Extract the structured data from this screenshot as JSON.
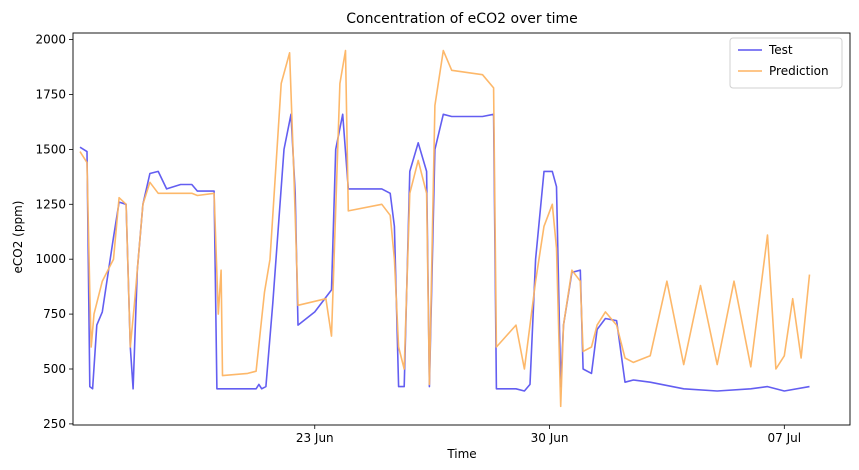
{
  "chart_data": {
    "type": "line",
    "title": "Concentration of eCO2 over time",
    "xlabel": "Time",
    "ylabel": "eCO2 (ppm)",
    "x_ticks": [
      {
        "label": "23 Jun",
        "date": "2024-06-23"
      },
      {
        "label": "30 Jun",
        "date": "2024-06-30"
      },
      {
        "label": "07 Jul",
        "date": "2024-07-07"
      }
    ],
    "y_ticks": [
      250,
      500,
      750,
      1000,
      1250,
      1500,
      1750,
      2000
    ],
    "xlim": [
      "2024-06-15T19:00",
      "2024-07-08T23:00"
    ],
    "ylim": [
      245,
      2030
    ],
    "grid": false,
    "legend": "top-right",
    "series": [
      {
        "name": "Test",
        "color": "#5b55f0",
        "points": [
          [
            "2024-06-16T00:00",
            1510
          ],
          [
            "2024-06-16T05:00",
            1490
          ],
          [
            "2024-06-16T07:00",
            420
          ],
          [
            "2024-06-16T09:00",
            410
          ],
          [
            "2024-06-16T12:00",
            700
          ],
          [
            "2024-06-16T16:00",
            760
          ],
          [
            "2024-06-17T00:00",
            1100
          ],
          [
            "2024-06-17T04:00",
            1260
          ],
          [
            "2024-06-17T09:00",
            1250
          ],
          [
            "2024-06-17T12:00",
            600
          ],
          [
            "2024-06-17T14:00",
            410
          ],
          [
            "2024-06-17T17:00",
            950
          ],
          [
            "2024-06-17T21:00",
            1250
          ],
          [
            "2024-06-18T02:00",
            1390
          ],
          [
            "2024-06-18T08:00",
            1400
          ],
          [
            "2024-06-18T14:00",
            1320
          ],
          [
            "2024-06-19T00:00",
            1340
          ],
          [
            "2024-06-19T08:00",
            1340
          ],
          [
            "2024-06-19T12:00",
            1310
          ],
          [
            "2024-06-20T00:00",
            1310
          ],
          [
            "2024-06-20T02:00",
            410
          ],
          [
            "2024-06-21T06:00",
            410
          ],
          [
            "2024-06-21T08:00",
            430
          ],
          [
            "2024-06-21T10:00",
            410
          ],
          [
            "2024-06-21T13:00",
            420
          ],
          [
            "2024-06-21T18:00",
            800
          ],
          [
            "2024-06-22T02:00",
            1500
          ],
          [
            "2024-06-22T07:00",
            1660
          ],
          [
            "2024-06-22T10:00",
            1300
          ],
          [
            "2024-06-22T12:00",
            700
          ],
          [
            "2024-06-23T00:00",
            760
          ],
          [
            "2024-06-23T12:00",
            860
          ],
          [
            "2024-06-23T15:00",
            1500
          ],
          [
            "2024-06-23T20:00",
            1660
          ],
          [
            "2024-06-24T00:00",
            1320
          ],
          [
            "2024-06-25T00:00",
            1320
          ],
          [
            "2024-06-25T06:00",
            1300
          ],
          [
            "2024-06-25T09:00",
            1150
          ],
          [
            "2024-06-25T12:00",
            420
          ],
          [
            "2024-06-25T16:00",
            420
          ],
          [
            "2024-06-25T20:00",
            1400
          ],
          [
            "2024-06-26T02:00",
            1530
          ],
          [
            "2024-06-26T08:00",
            1400
          ],
          [
            "2024-06-26T10:00",
            420
          ],
          [
            "2024-06-26T14:00",
            1500
          ],
          [
            "2024-06-26T20:00",
            1660
          ],
          [
            "2024-06-27T02:00",
            1650
          ],
          [
            "2024-06-28T00:00",
            1650
          ],
          [
            "2024-06-28T08:00",
            1660
          ],
          [
            "2024-06-28T10:00",
            410
          ],
          [
            "2024-06-29T00:00",
            410
          ],
          [
            "2024-06-29T06:00",
            400
          ],
          [
            "2024-06-29T10:00",
            430
          ],
          [
            "2024-06-29T14:00",
            1000
          ],
          [
            "2024-06-29T20:00",
            1400
          ],
          [
            "2024-06-30T02:00",
            1400
          ],
          [
            "2024-06-30T05:00",
            1330
          ],
          [
            "2024-06-30T08:00",
            420
          ],
          [
            "2024-06-30T10:00",
            700
          ],
          [
            "2024-06-30T16:00",
            940
          ],
          [
            "2024-06-30T22:00",
            950
          ],
          [
            "2024-07-01T00:00",
            500
          ],
          [
            "2024-07-01T06:00",
            480
          ],
          [
            "2024-07-01T10:00",
            680
          ],
          [
            "2024-07-01T16:00",
            730
          ],
          [
            "2024-07-02T00:00",
            720
          ],
          [
            "2024-07-02T06:00",
            440
          ],
          [
            "2024-07-02T12:00",
            450
          ],
          [
            "2024-07-03T00:00",
            440
          ],
          [
            "2024-07-04T00:00",
            410
          ],
          [
            "2024-07-05T00:00",
            400
          ],
          [
            "2024-07-06T00:00",
            410
          ],
          [
            "2024-07-06T12:00",
            420
          ],
          [
            "2024-07-07T00:00",
            400
          ],
          [
            "2024-07-07T18:00",
            420
          ]
        ]
      },
      {
        "name": "Prediction",
        "color": "#fdb462",
        "points": [
          [
            "2024-06-16T00:00",
            1490
          ],
          [
            "2024-06-16T05:00",
            1440
          ],
          [
            "2024-06-16T07:00",
            850
          ],
          [
            "2024-06-16T08:00",
            600
          ],
          [
            "2024-06-16T10:00",
            750
          ],
          [
            "2024-06-16T16:00",
            900
          ],
          [
            "2024-06-17T00:00",
            1000
          ],
          [
            "2024-06-17T04:00",
            1280
          ],
          [
            "2024-06-17T09:00",
            1250
          ],
          [
            "2024-06-17T12:00",
            600
          ],
          [
            "2024-06-17T15:00",
            800
          ],
          [
            "2024-06-17T21:00",
            1250
          ],
          [
            "2024-06-18T02:00",
            1350
          ],
          [
            "2024-06-18T08:00",
            1300
          ],
          [
            "2024-06-18T14:00",
            1300
          ],
          [
            "2024-06-19T00:00",
            1300
          ],
          [
            "2024-06-19T08:00",
            1300
          ],
          [
            "2024-06-19T12:00",
            1290
          ],
          [
            "2024-06-20T00:00",
            1300
          ],
          [
            "2024-06-20T03:00",
            750
          ],
          [
            "2024-06-20T05:00",
            950
          ],
          [
            "2024-06-20T06:00",
            470
          ],
          [
            "2024-06-21T00:00",
            480
          ],
          [
            "2024-06-21T06:00",
            490
          ],
          [
            "2024-06-21T12:00",
            850
          ],
          [
            "2024-06-21T16:00",
            1000
          ],
          [
            "2024-06-22T00:00",
            1800
          ],
          [
            "2024-06-22T06:00",
            1940
          ],
          [
            "2024-06-22T09:00",
            1400
          ],
          [
            "2024-06-22T12:00",
            790
          ],
          [
            "2024-06-23T08:00",
            820
          ],
          [
            "2024-06-23T12:00",
            650
          ],
          [
            "2024-06-23T18:00",
            1800
          ],
          [
            "2024-06-23T22:00",
            1950
          ],
          [
            "2024-06-24T00:00",
            1220
          ],
          [
            "2024-06-25T00:00",
            1250
          ],
          [
            "2024-06-25T06:00",
            1200
          ],
          [
            "2024-06-25T09:00",
            1000
          ],
          [
            "2024-06-25T12:00",
            600
          ],
          [
            "2024-06-25T16:00",
            500
          ],
          [
            "2024-06-25T20:00",
            1300
          ],
          [
            "2024-06-26T02:00",
            1450
          ],
          [
            "2024-06-26T08:00",
            1300
          ],
          [
            "2024-06-26T10:00",
            430
          ],
          [
            "2024-06-26T14:00",
            1700
          ],
          [
            "2024-06-26T20:00",
            1950
          ],
          [
            "2024-06-27T02:00",
            1860
          ],
          [
            "2024-06-28T00:00",
            1840
          ],
          [
            "2024-06-28T08:00",
            1780
          ],
          [
            "2024-06-28T10:00",
            600
          ],
          [
            "2024-06-29T00:00",
            700
          ],
          [
            "2024-06-29T06:00",
            500
          ],
          [
            "2024-06-29T10:00",
            700
          ],
          [
            "2024-06-29T14:00",
            900
          ],
          [
            "2024-06-29T20:00",
            1150
          ],
          [
            "2024-06-30T02:00",
            1250
          ],
          [
            "2024-06-30T05:00",
            1050
          ],
          [
            "2024-06-30T08:00",
            330
          ],
          [
            "2024-06-30T10:00",
            700
          ],
          [
            "2024-06-30T16:00",
            950
          ],
          [
            "2024-06-30T22:00",
            900
          ],
          [
            "2024-07-01T00:00",
            580
          ],
          [
            "2024-07-01T06:00",
            600
          ],
          [
            "2024-07-01T10:00",
            700
          ],
          [
            "2024-07-01T16:00",
            760
          ],
          [
            "2024-07-02T00:00",
            700
          ],
          [
            "2024-07-02T06:00",
            550
          ],
          [
            "2024-07-02T12:00",
            530
          ],
          [
            "2024-07-03T00:00",
            560
          ],
          [
            "2024-07-03T12:00",
            900
          ],
          [
            "2024-07-04T00:00",
            520
          ],
          [
            "2024-07-04T12:00",
            880
          ],
          [
            "2024-07-05T00:00",
            520
          ],
          [
            "2024-07-05T12:00",
            900
          ],
          [
            "2024-07-06T00:00",
            510
          ],
          [
            "2024-07-06T12:00",
            1110
          ],
          [
            "2024-07-06T18:00",
            500
          ],
          [
            "2024-07-07T00:00",
            560
          ],
          [
            "2024-07-07T06:00",
            820
          ],
          [
            "2024-07-07T12:00",
            550
          ],
          [
            "2024-07-07T18:00",
            930
          ]
        ]
      }
    ]
  }
}
